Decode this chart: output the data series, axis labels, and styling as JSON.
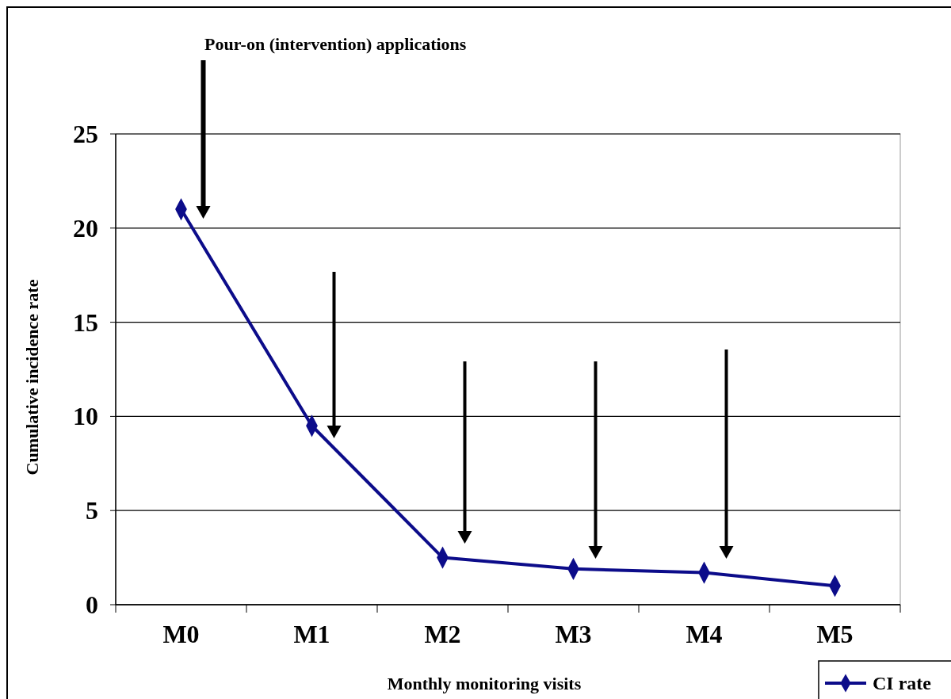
{
  "chart_data": {
    "type": "line",
    "xlabel": "Monthly monitoring visits",
    "ylabel": "Cumulative incidence rate",
    "categories": [
      "M0",
      "M1",
      "M2",
      "M3",
      "M4",
      "M5"
    ],
    "series": [
      {
        "name": "CI rate",
        "color": "#0c0c8a",
        "values": [
          21,
          9.5,
          2.5,
          1.9,
          1.7,
          1.0
        ]
      }
    ],
    "ylim": [
      0,
      25
    ],
    "yticks": [
      0,
      5,
      10,
      15,
      20,
      25
    ],
    "grid": "y",
    "legend": "bottom right",
    "marker": "diamond",
    "line_style": "solid",
    "annotations": [
      "Pour-on (intervention) applications"
    ]
  }
}
